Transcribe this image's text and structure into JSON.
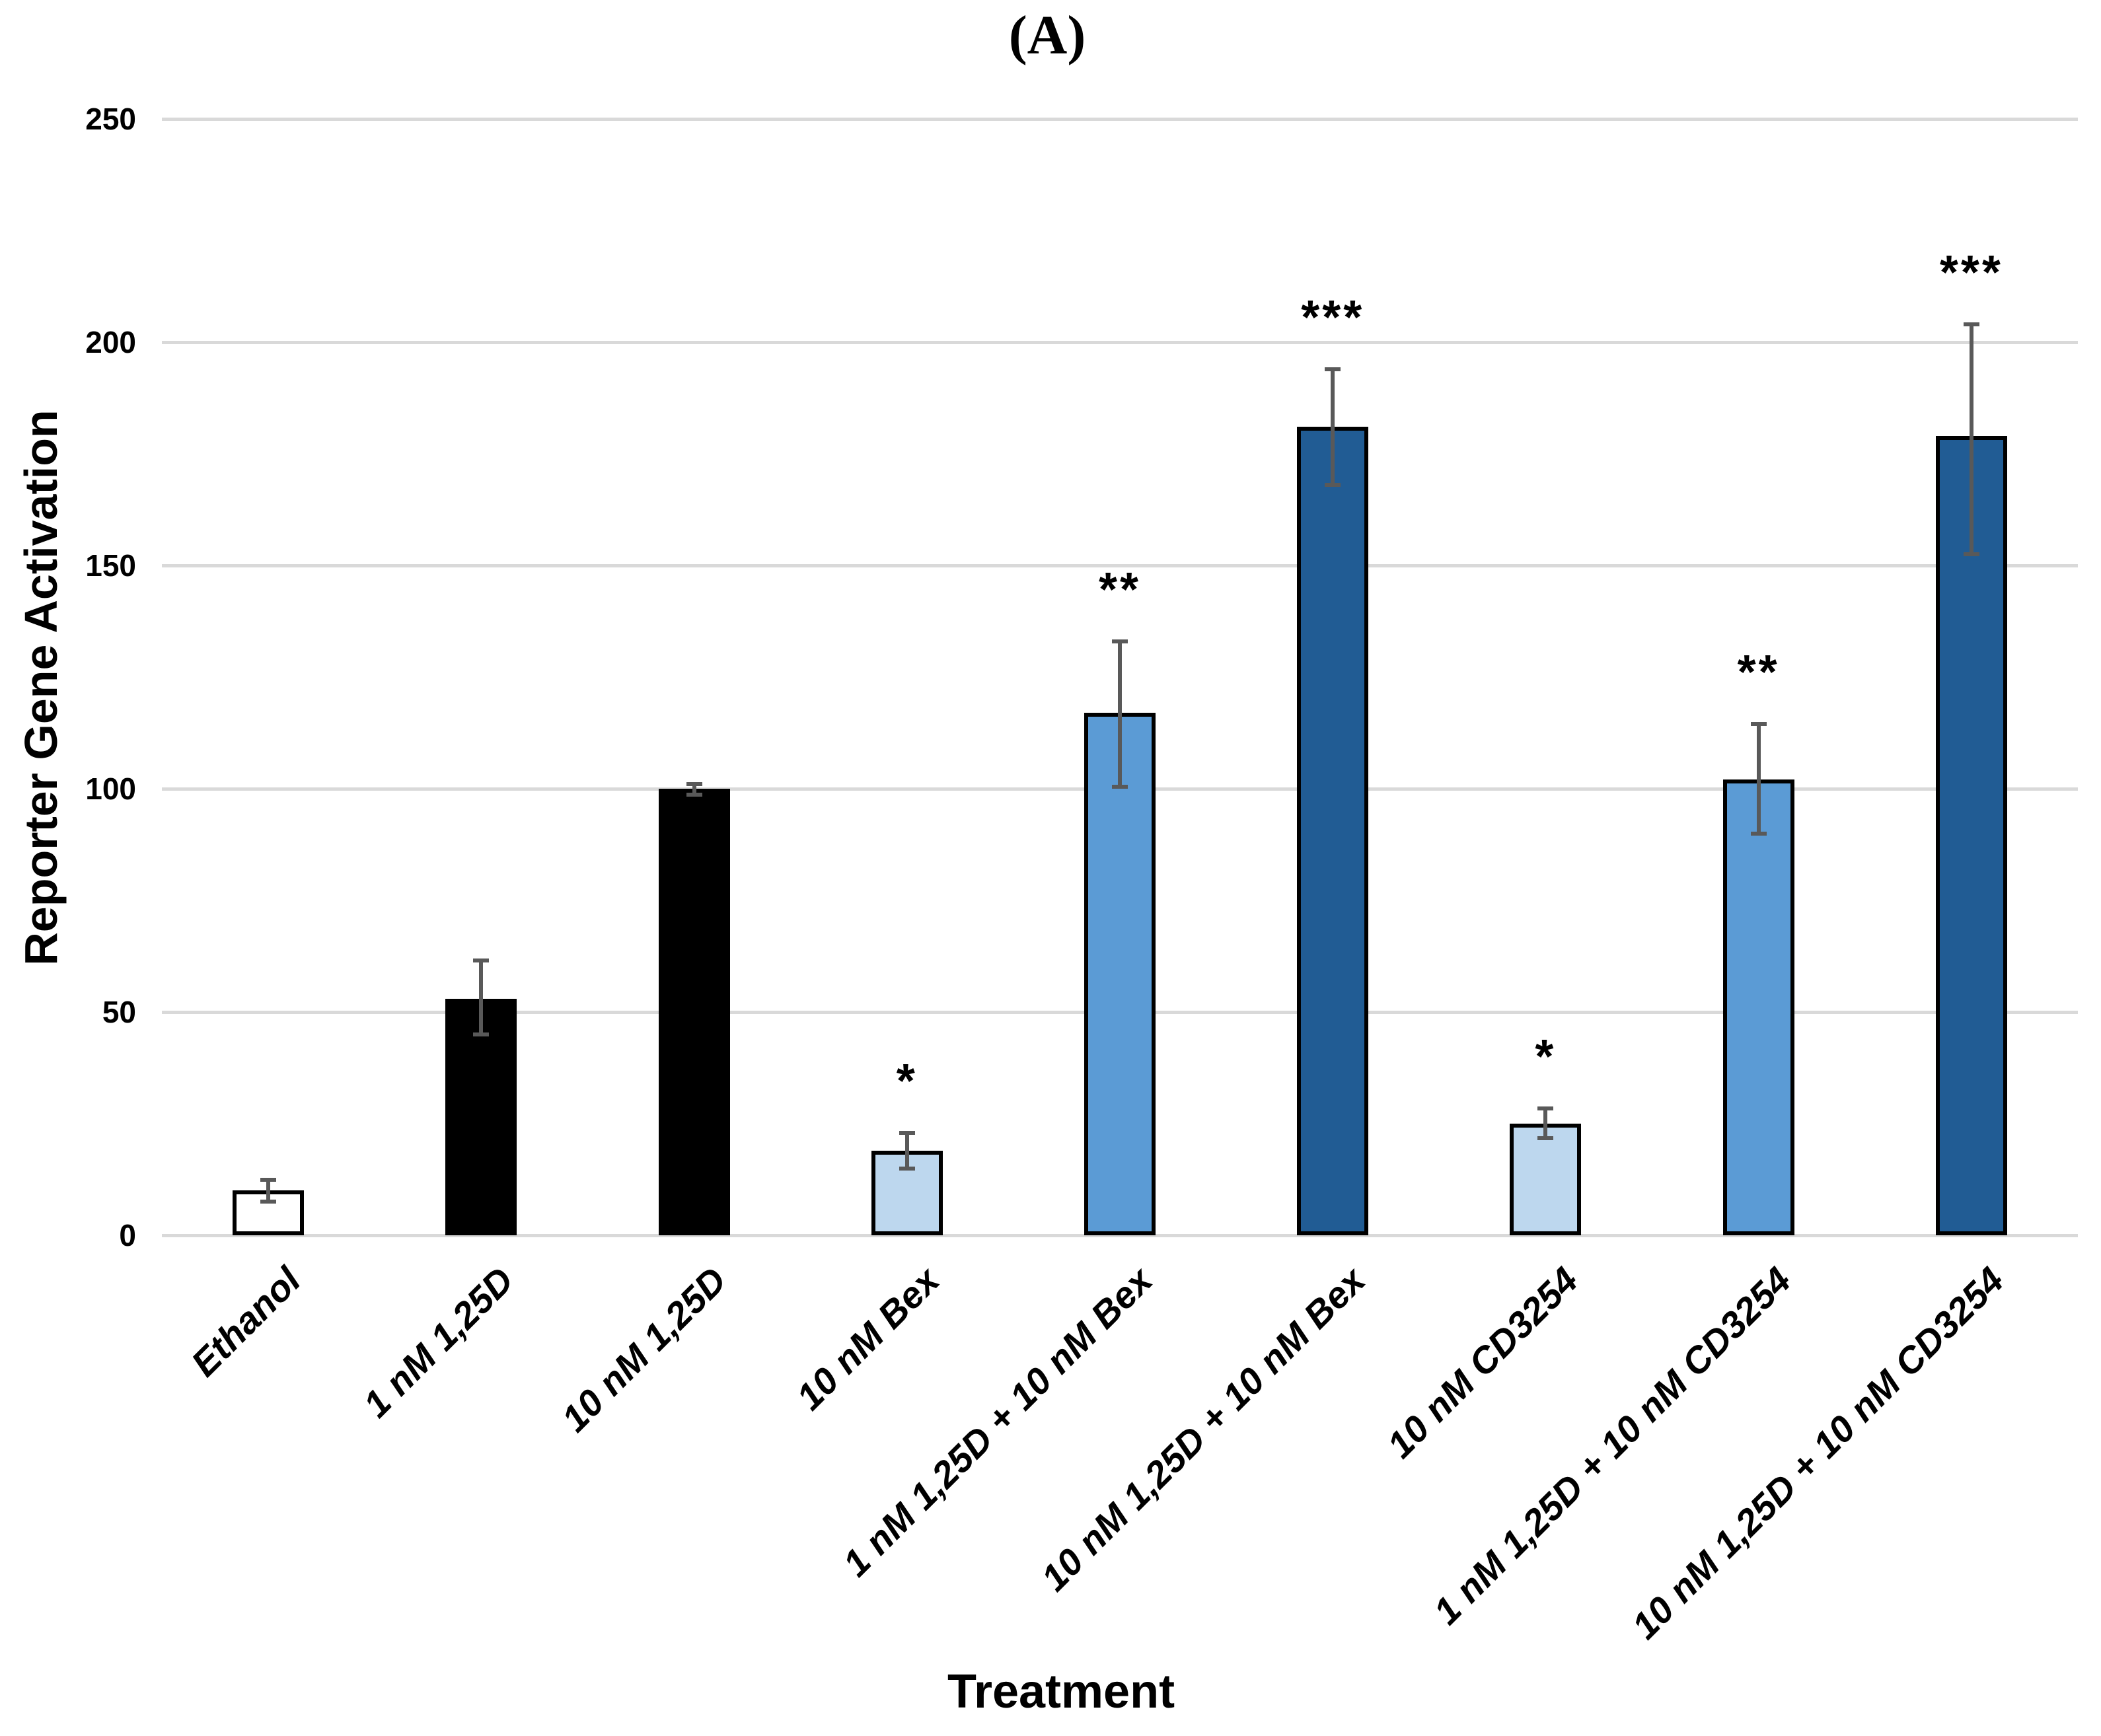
{
  "figure_label": "(A)",
  "chart_data": {
    "type": "bar",
    "title": "(A)",
    "xlabel": "Treatment",
    "ylabel": "Reporter Gene Activation",
    "ylim": [
      0,
      250
    ],
    "yticks": [
      0,
      50,
      100,
      150,
      200,
      250
    ],
    "grid": "horizontal",
    "legend": "none",
    "categories": [
      "Ethanol",
      "1 nM 1,25D",
      "10 nM 1,25D",
      "10 nM Bex",
      "1 nM 1,25D + 10 nM Bex",
      "10 nM 1,25D + 10 nM Bex",
      "10 nM CD3254",
      "1 nM 1,25D + 10 nM CD3254",
      "10 nM 1,25D + 10 nM CD3254"
    ],
    "values": [
      10,
      53,
      100,
      19,
      117,
      181,
      25,
      102,
      179
    ],
    "error_plus": [
      2.4,
      8.5,
      1.0,
      4.0,
      16.0,
      13.0,
      3.4,
      12.5,
      25.0
    ],
    "error_minus": [
      2.5,
      8.0,
      1.3,
      4.0,
      16.5,
      13.0,
      3.2,
      12.0,
      26.5
    ],
    "significance": [
      "",
      "",
      "",
      "*",
      "**",
      "***",
      "*",
      "**",
      "***"
    ],
    "bar_colors": [
      "#FFFFFF",
      "#000000",
      "#000000",
      "#BDD7EE",
      "#5B9BD5",
      "#215C94",
      "#BDD7EE",
      "#5B9BD5",
      "#215C94"
    ],
    "bar_border_color": "#000000",
    "error_bar_color": "#595959",
    "gridline_color": "#D9D9D9",
    "text_color": "#000000"
  }
}
